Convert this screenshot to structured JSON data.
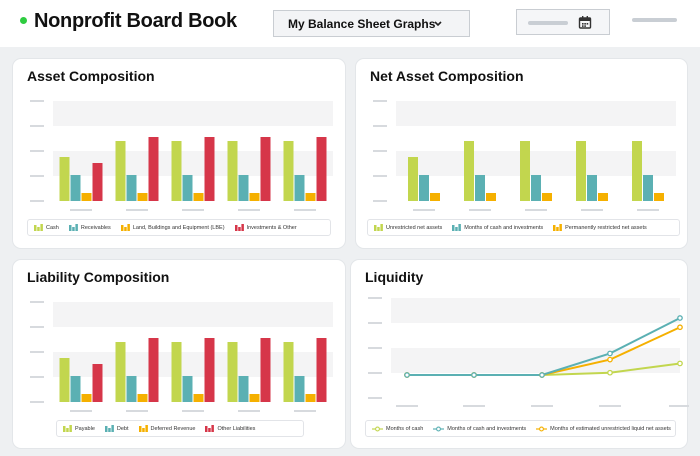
{
  "header": {
    "title": "Nonprofit Board Book",
    "dropdown_label": "My Balance Sheet Graphs"
  },
  "colors": {
    "green": "#c2d64e",
    "teal": "#5bb0b3",
    "orange": "#f5b000",
    "red": "#d63649",
    "status_dot": "#2ecc40"
  },
  "cards": {
    "asset": {
      "title": "Asset Composition",
      "legend": [
        "Cash",
        "Receivables",
        "Land, Buildings and Equipment (LBE)",
        "Investments & Other"
      ]
    },
    "net_asset": {
      "title": "Net Asset Composition",
      "legend": [
        "Unrestricted net assets",
        "Months of cash and investments",
        "Permanently restricted net assets"
      ]
    },
    "liability": {
      "title": "Liability Composition",
      "legend": [
        "Payable",
        "Debt",
        "Deferred Revenue",
        "Other Liabilities"
      ]
    },
    "liquidity": {
      "title": "Liquidity",
      "legend": [
        "Months of cash",
        "Months of cash and investments",
        "Months of estimated unrestricted liquid net assets"
      ]
    }
  },
  "chart_data": [
    {
      "type": "bar",
      "title": "Asset Composition",
      "categories": [
        "",
        "",
        "",
        "",
        ""
      ],
      "ylim": [
        0,
        5
      ],
      "series": [
        {
          "name": "Cash",
          "values": [
            2.2,
            3.0,
            3.0,
            3.0,
            3.0
          ]
        },
        {
          "name": "Receivables",
          "values": [
            1.3,
            1.3,
            1.3,
            1.3,
            1.3
          ]
        },
        {
          "name": "Land, Buildings and Equipment (LBE)",
          "values": [
            0.4,
            0.4,
            0.4,
            0.4,
            0.4
          ]
        },
        {
          "name": "Investments & Other",
          "values": [
            1.9,
            3.2,
            3.2,
            3.2,
            3.2
          ]
        }
      ]
    },
    {
      "type": "bar",
      "title": "Net Asset Composition",
      "categories": [
        "",
        "",
        "",
        "",
        ""
      ],
      "ylim": [
        0,
        5
      ],
      "series": [
        {
          "name": "Unrestricted net assets",
          "values": [
            2.2,
            3.0,
            3.0,
            3.0,
            3.0
          ]
        },
        {
          "name": "Months of cash and investments",
          "values": [
            1.3,
            1.3,
            1.3,
            1.3,
            1.3
          ]
        },
        {
          "name": "Permanently restricted net assets",
          "values": [
            0.4,
            0.4,
            0.4,
            0.4,
            0.4
          ]
        }
      ]
    },
    {
      "type": "bar",
      "title": "Liability Composition",
      "categories": [
        "",
        "",
        "",
        "",
        ""
      ],
      "ylim": [
        0,
        5
      ],
      "series": [
        {
          "name": "Payable",
          "values": [
            2.2,
            3.0,
            3.0,
            3.0,
            3.0
          ]
        },
        {
          "name": "Debt",
          "values": [
            1.3,
            1.3,
            1.3,
            1.3,
            1.3
          ]
        },
        {
          "name": "Deferred Revenue",
          "values": [
            0.4,
            0.4,
            0.4,
            0.4,
            0.4
          ]
        },
        {
          "name": "Other Liabilities",
          "values": [
            1.9,
            3.2,
            3.2,
            3.2,
            3.2
          ]
        }
      ]
    },
    {
      "type": "line",
      "title": "Liquidity",
      "x": [
        "",
        "",
        "",
        "",
        ""
      ],
      "ylim": [
        0,
        5
      ],
      "series": [
        {
          "name": "Months of cash",
          "values": [
            0.0,
            0.0,
            0.0,
            0.15,
            0.75
          ]
        },
        {
          "name": "Months of cash and investments",
          "values": [
            0.0,
            0.0,
            0.0,
            1.4,
            3.7
          ]
        },
        {
          "name": "Months of estimated unrestricted liquid net assets",
          "values": [
            0.0,
            0.0,
            0.0,
            1.0,
            3.1
          ]
        }
      ]
    }
  ]
}
